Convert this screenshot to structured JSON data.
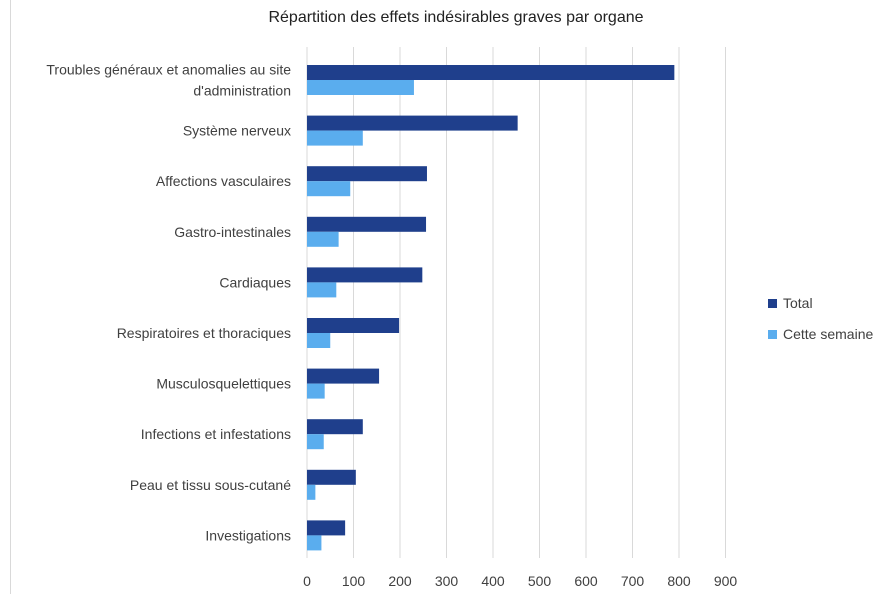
{
  "chart_data": {
    "type": "bar",
    "orientation": "horizontal",
    "title": "Répartition des effets indésirables graves par organe",
    "categories": [
      [
        "Troubles généraux et anomalies au site",
        "d'administration"
      ],
      [
        "Système nerveux"
      ],
      [
        "Affections vasculaires"
      ],
      [
        "Gastro-intestinales"
      ],
      [
        "Cardiaques"
      ],
      [
        "Respiratoires et thoraciques"
      ],
      [
        "Musculosquelettiques"
      ],
      [
        "Infections et infestations"
      ],
      [
        "Peau et tissu sous-cutané"
      ],
      [
        "Investigations"
      ]
    ],
    "series": [
      {
        "name": "Total",
        "color": "#1f3f8c",
        "values": [
          790,
          453,
          258,
          256,
          248,
          198,
          155,
          120,
          105,
          82
        ]
      },
      {
        "name": "Cette semaine",
        "color": "#5aadee",
        "values": [
          230,
          120,
          93,
          68,
          63,
          50,
          38,
          36,
          18,
          31
        ]
      }
    ],
    "xlim": [
      0,
      900
    ],
    "xticks": [
      0,
      100,
      200,
      300,
      400,
      500,
      600,
      700,
      800,
      900
    ],
    "grid": true,
    "legend_position": "right"
  }
}
